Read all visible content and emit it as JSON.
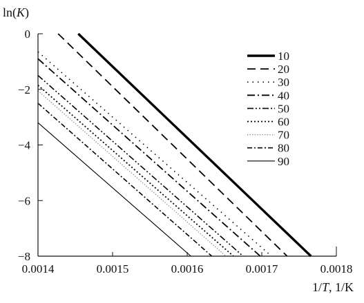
{
  "chart_data": {
    "type": "line",
    "ylabel": {
      "prefix": "ln(",
      "var": "K",
      "suffix": ")"
    },
    "xlabel": {
      "prefix": "1/",
      "var": "T",
      "suffix": ", 1/K"
    },
    "xlim": [
      0.0014,
      0.0018
    ],
    "ylim": [
      -8,
      0
    ],
    "xticks": [
      0.0014,
      0.0015,
      0.0016,
      0.0017,
      0.0018
    ],
    "xtick_labels": [
      "0.0014",
      "0.0015",
      "0.0016",
      "0.0017",
      "0.0018"
    ],
    "yticks": [
      0,
      -2,
      -4,
      -6,
      -8
    ],
    "ytick_labels": [
      "0",
      "−2",
      "−4",
      "−6",
      "−8"
    ],
    "grid": false,
    "legend_position": "right",
    "series": [
      {
        "name": "10",
        "style": "solid-thick",
        "points": [
          [
            0.001454,
            0
          ],
          [
            0.001766,
            -8
          ]
        ]
      },
      {
        "name": "20",
        "style": "dash",
        "points": [
          [
            0.001427,
            0
          ],
          [
            0.001734,
            -8
          ]
        ]
      },
      {
        "name": "30",
        "style": "dot",
        "points": [
          [
            0.0014,
            -0.65
          ],
          [
            0.001713,
            -8
          ]
        ]
      },
      {
        "name": "40",
        "style": "dash-dot",
        "points": [
          [
            0.0014,
            -0.9
          ],
          [
            0.001698,
            -8
          ]
        ]
      },
      {
        "name": "50",
        "style": "dash-dot-dot",
        "points": [
          [
            0.0014,
            -1.5
          ],
          [
            0.001675,
            -8
          ]
        ]
      },
      {
        "name": "60",
        "style": "dense-dot",
        "points": [
          [
            0.0014,
            -1.85
          ],
          [
            0.001662,
            -8
          ]
        ]
      },
      {
        "name": "70",
        "style": "light-dot",
        "points": [
          [
            0.0014,
            -2.05
          ],
          [
            0.001652,
            -8
          ]
        ]
      },
      {
        "name": "80",
        "style": "dash-dot-short",
        "points": [
          [
            0.0014,
            -2.5
          ],
          [
            0.001633,
            -8
          ]
        ]
      },
      {
        "name": "90",
        "style": "solid-thin",
        "points": [
          [
            0.0014,
            -3.2
          ],
          [
            0.001605,
            -8
          ]
        ]
      }
    ]
  }
}
